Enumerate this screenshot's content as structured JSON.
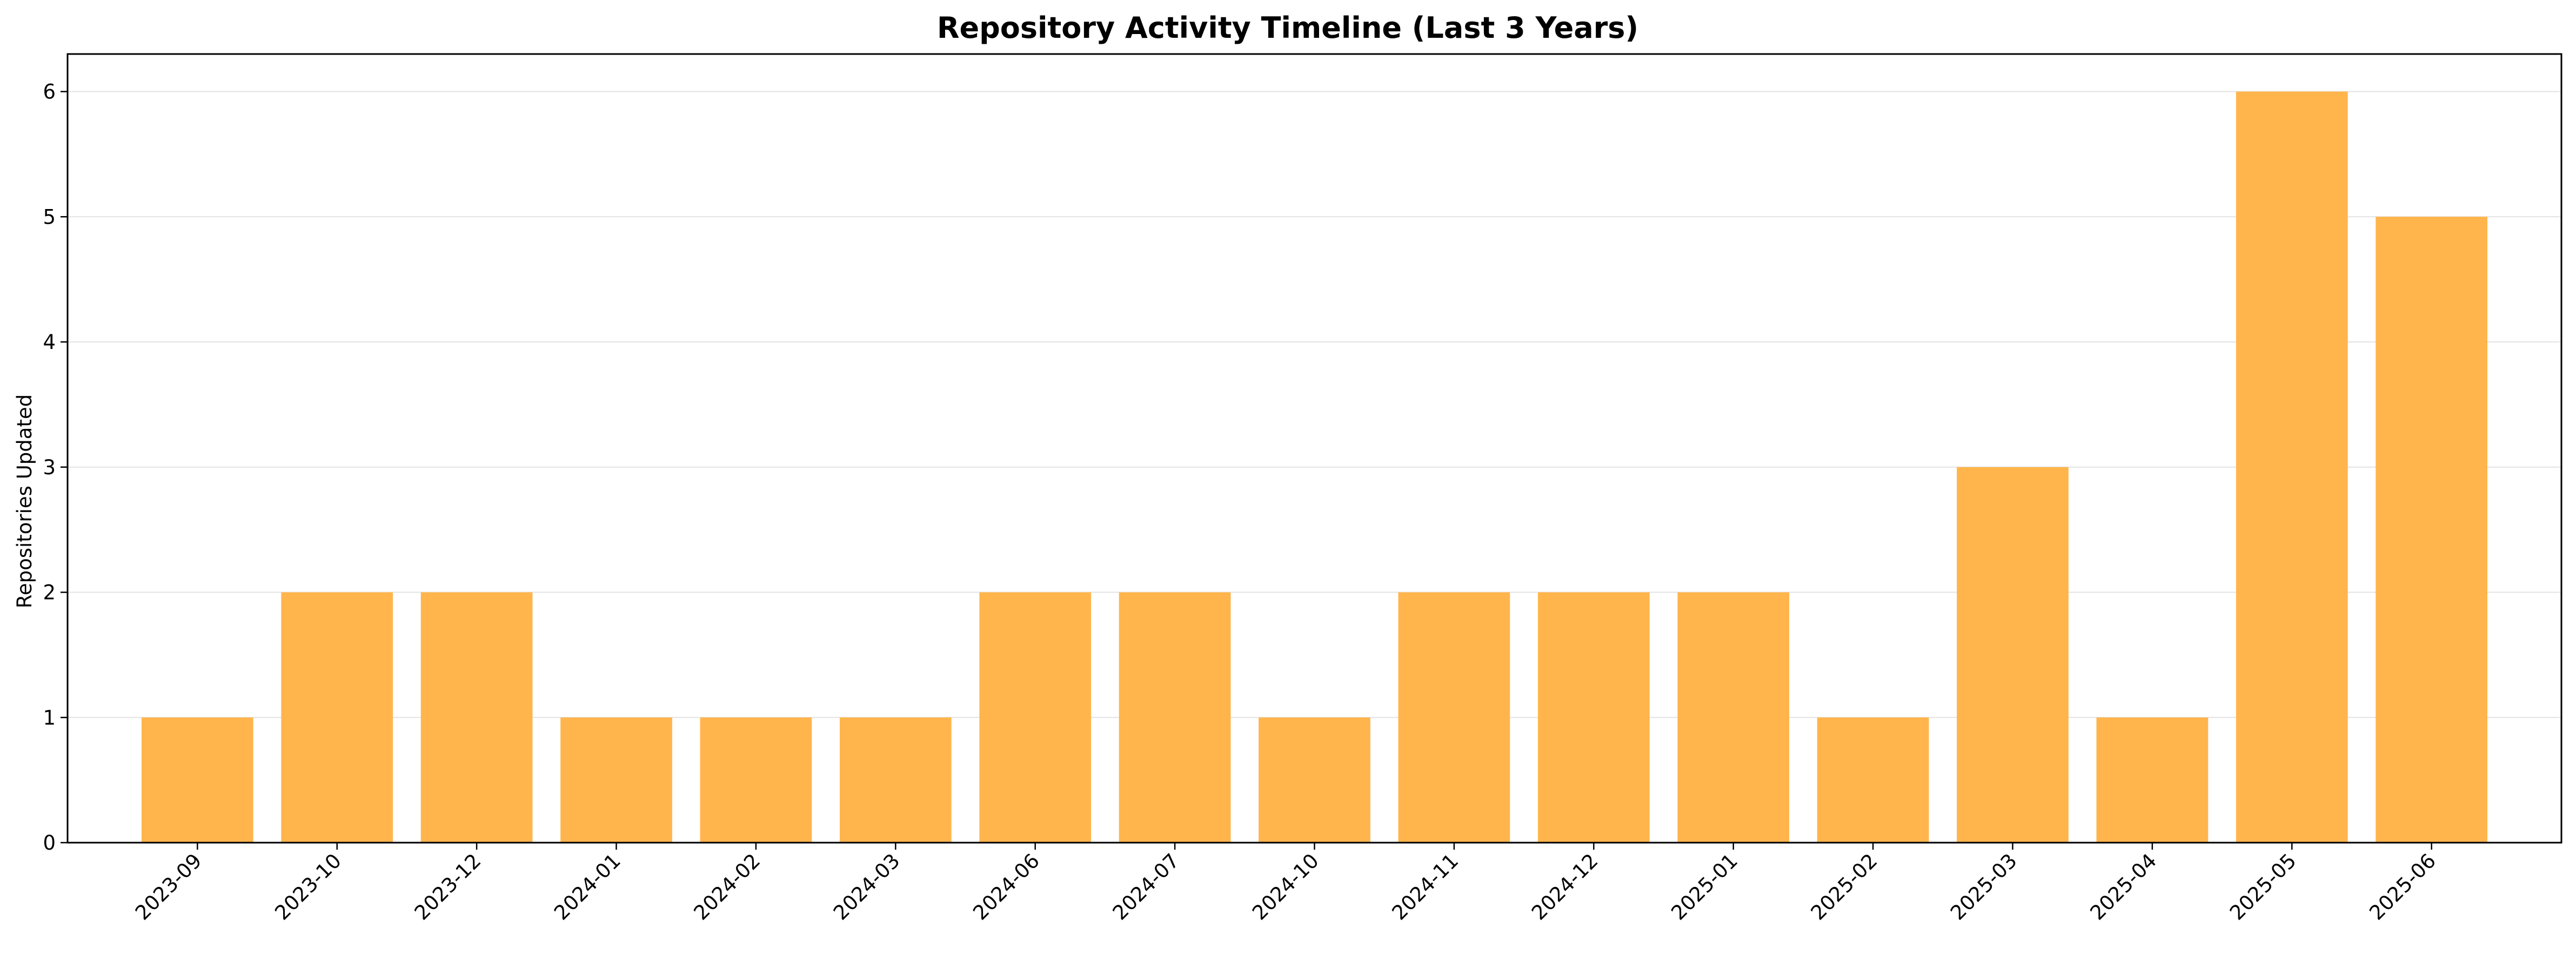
{
  "chart_data": {
    "type": "bar",
    "title": "Repository Activity Timeline (Last 3 Years)",
    "xlabel": "",
    "ylabel": "Repositories Updated",
    "categories": [
      "2023-09",
      "2023-10",
      "2023-12",
      "2024-01",
      "2024-02",
      "2024-03",
      "2024-06",
      "2024-07",
      "2024-10",
      "2024-11",
      "2024-12",
      "2025-01",
      "2025-02",
      "2025-03",
      "2025-04",
      "2025-05",
      "2025-06"
    ],
    "values": [
      1,
      2,
      2,
      1,
      1,
      1,
      2,
      2,
      1,
      2,
      2,
      2,
      1,
      3,
      1,
      6,
      5
    ],
    "ylim": [
      0,
      6.3
    ],
    "yticks": [
      0,
      1,
      2,
      3,
      4,
      5,
      6
    ],
    "grid": "y-axis",
    "bar_color": "#FFB54C",
    "legend": "none"
  }
}
